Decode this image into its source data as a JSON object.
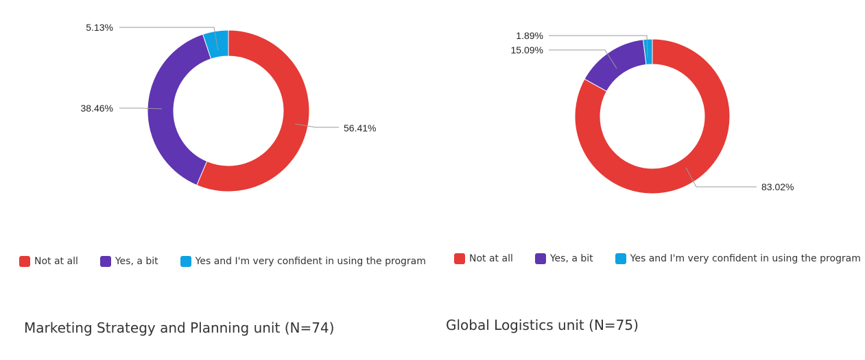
{
  "chart_data": [
    {
      "type": "pie",
      "variant": "donut",
      "caption": "Marketing Strategy and Planning unit (N=74)",
      "categories": [
        "Not at all",
        "Yes, a bit",
        "Yes and I'm very confident in using the program"
      ],
      "values": [
        56.41,
        38.46,
        5.13
      ],
      "labels": [
        "56.41%",
        "38.46%",
        "5.13%"
      ],
      "colors": [
        "#E53A36",
        "#5F35B1",
        "#0CA2E3"
      ],
      "legend": {
        "position": "bottom"
      }
    },
    {
      "type": "pie",
      "variant": "donut",
      "caption": "Global Logistics unit (N=75)",
      "categories": [
        "Not at all",
        "Yes, a bit",
        "Yes and I'm very confident in using the program"
      ],
      "values": [
        83.02,
        15.09,
        1.89
      ],
      "labels": [
        "83.02%",
        "15.09%",
        "1.89%"
      ],
      "colors": [
        "#E53A36",
        "#5F35B1",
        "#0CA2E3"
      ],
      "legend": {
        "position": "bottom"
      }
    }
  ]
}
